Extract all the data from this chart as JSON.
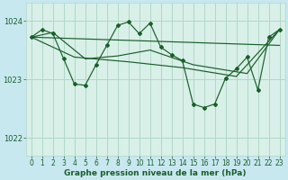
{
  "title": "Graphe pression niveau de la mer (hPa)",
  "bg_color": "#c8e8f0",
  "plot_bg_color": "#d8f0e8",
  "line_color": "#1a5e2a",
  "grid_color": "#b0d8c8",
  "xlim": [
    -0.5,
    23.5
  ],
  "ylim": [
    1021.7,
    1024.3
  ],
  "yticks": [
    1022,
    1023,
    1024
  ],
  "xticks": [
    0,
    1,
    2,
    3,
    4,
    5,
    6,
    7,
    8,
    9,
    10,
    11,
    12,
    13,
    14,
    15,
    16,
    17,
    18,
    19,
    20,
    21,
    22,
    23
  ],
  "series_main": [
    [
      0,
      1023.72
    ],
    [
      1,
      1023.85
    ],
    [
      2,
      1023.78
    ],
    [
      3,
      1023.35
    ],
    [
      4,
      1022.92
    ],
    [
      5,
      1022.9
    ],
    [
      6,
      1023.25
    ],
    [
      7,
      1023.58
    ],
    [
      8,
      1023.92
    ],
    [
      9,
      1023.98
    ],
    [
      10,
      1023.78
    ],
    [
      11,
      1023.96
    ],
    [
      12,
      1023.55
    ],
    [
      13,
      1023.42
    ],
    [
      14,
      1023.32
    ],
    [
      15,
      1022.58
    ],
    [
      16,
      1022.52
    ],
    [
      17,
      1022.58
    ],
    [
      18,
      1023.02
    ],
    [
      19,
      1023.18
    ],
    [
      20,
      1023.38
    ],
    [
      21,
      1022.82
    ],
    [
      22,
      1023.72
    ],
    [
      23,
      1023.85
    ]
  ],
  "series_trend1": [
    [
      0,
      1023.72
    ],
    [
      2,
      1023.8
    ],
    [
      5,
      1023.35
    ],
    [
      8,
      1023.4
    ],
    [
      11,
      1023.5
    ],
    [
      15,
      1023.25
    ],
    [
      20,
      1023.1
    ],
    [
      23,
      1023.85
    ]
  ],
  "series_trend2": [
    [
      0,
      1023.72
    ],
    [
      4,
      1023.38
    ],
    [
      9,
      1023.3
    ],
    [
      14,
      1023.2
    ],
    [
      19,
      1023.05
    ],
    [
      23,
      1023.85
    ]
  ],
  "series_trend3": [
    [
      0,
      1023.72
    ],
    [
      23,
      1023.58
    ]
  ],
  "tick_fontsize": 5.5,
  "xlabel_fontsize": 6.5
}
